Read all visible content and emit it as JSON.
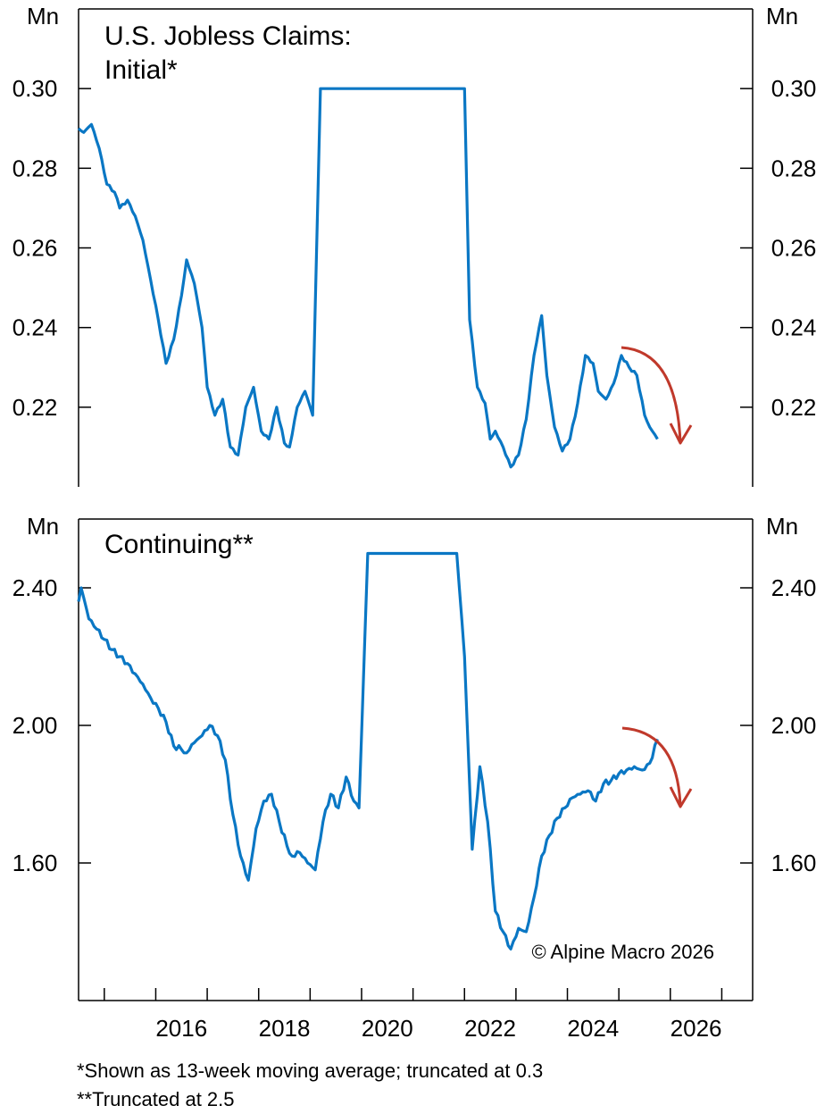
{
  "chart_data": [
    {
      "type": "line",
      "title": "U.S. Jobless Claims:",
      "subtitle": "Initial*",
      "unit_left": "Mn",
      "unit_right": "Mn",
      "y_ticks": [
        "0.30",
        "0.28",
        "0.26",
        "0.24",
        "0.22"
      ],
      "y_tick_values": [
        0.3,
        0.28,
        0.26,
        0.24,
        0.22
      ],
      "ylim": [
        0.2,
        0.32
      ],
      "xlim": [
        2014.5,
        2027.6
      ],
      "series_color": "#0a77c4",
      "arrow_color": "#c0392b",
      "series": [
        {
          "x": [
            2014.5,
            2014.6,
            2014.75,
            2014.9,
            2015.05,
            2015.2,
            2015.3,
            2015.45,
            2015.6,
            2015.75,
            2015.9,
            2016.05,
            2016.2,
            2016.35,
            2016.5,
            2016.6,
            2016.75,
            2016.9,
            2017.0,
            2017.15,
            2017.3,
            2017.45,
            2017.6,
            2017.75,
            2017.9,
            2018.05,
            2018.2,
            2018.35,
            2018.5,
            2018.6,
            2018.75,
            2018.9,
            2019.05,
            2019.2,
            2019.35,
            2019.5,
            2019.6,
            2019.75,
            2019.9,
            2020.0,
            2020.12,
            2020.18,
            2020.2,
            2020.3,
            2021.5,
            2021.55,
            2021.6,
            2021.7,
            2021.85,
            2022.0,
            2022.1,
            2022.25,
            2022.4,
            2022.5,
            2022.6,
            2022.75,
            2022.9,
            2023.05,
            2023.2,
            2023.35,
            2023.5,
            2023.6,
            2023.75,
            2023.9,
            2024.05,
            2024.2,
            2024.35,
            2024.5,
            2024.6,
            2024.75,
            2024.9,
            2025.05,
            2025.2,
            2025.35,
            2025.5,
            2025.6,
            2025.75
          ],
          "values": [
            0.29,
            0.289,
            0.291,
            0.285,
            0.276,
            0.274,
            0.27,
            0.272,
            0.268,
            0.262,
            0.252,
            0.242,
            0.231,
            0.237,
            0.248,
            0.257,
            0.251,
            0.24,
            0.225,
            0.218,
            0.222,
            0.21,
            0.208,
            0.22,
            0.225,
            0.214,
            0.212,
            0.22,
            0.211,
            0.21,
            0.22,
            0.224,
            0.218,
            0.3,
            0.3,
            0.3,
            0.3,
            0.3,
            0.3,
            0.3,
            0.3,
            0.3,
            0.3,
            0.3,
            0.3,
            0.3,
            0.3,
            0.3,
            0.3,
            0.3,
            0.242,
            0.225,
            0.221,
            0.212,
            0.214,
            0.21,
            0.205,
            0.208,
            0.217,
            0.233,
            0.243,
            0.228,
            0.215,
            0.209,
            0.212,
            0.221,
            0.233,
            0.231,
            0.224,
            0.222,
            0.226,
            0.233,
            0.23,
            0.228,
            0.218,
            0.215,
            0.212
          ]
        }
      ]
    },
    {
      "type": "line",
      "title": "Continuing**",
      "unit_left": "Mn",
      "unit_right": "Mn",
      "y_ticks": [
        "2.40",
        "2.00",
        "1.60"
      ],
      "y_tick_values": [
        2.4,
        2.0,
        1.6
      ],
      "ylim": [
        1.2,
        2.6
      ],
      "xlim": [
        2014.5,
        2027.6
      ],
      "x_ticks": [
        "2016",
        "2018",
        "2020",
        "2022",
        "2024",
        "2026"
      ],
      "x_tick_values": [
        2016,
        2018,
        2020,
        2022,
        2024,
        2026
      ],
      "series_color": "#0a77c4",
      "arrow_color": "#c0392b",
      "series": [
        {
          "x": [
            2014.5,
            2014.55,
            2014.7,
            2014.85,
            2015.0,
            2015.15,
            2015.3,
            2015.45,
            2015.6,
            2015.75,
            2015.9,
            2016.05,
            2016.2,
            2016.35,
            2016.5,
            2016.6,
            2016.75,
            2016.9,
            2017.05,
            2017.2,
            2017.35,
            2017.5,
            2017.65,
            2017.8,
            2017.95,
            2018.1,
            2018.25,
            2018.4,
            2018.55,
            2018.65,
            2018.8,
            2018.95,
            2019.1,
            2019.25,
            2019.4,
            2019.55,
            2019.7,
            2019.85,
            2019.95,
            2020.12,
            2020.18,
            2020.2,
            2021.65,
            2021.68,
            2021.75,
            2021.85,
            2022.0,
            2022.15,
            2022.3,
            2022.45,
            2022.6,
            2022.75,
            2022.9,
            2023.05,
            2023.2,
            2023.35,
            2023.5,
            2023.65,
            2023.8,
            2023.95,
            2024.1,
            2024.25,
            2024.4,
            2024.55,
            2024.7,
            2024.85,
            2025.0,
            2025.15,
            2025.3,
            2025.45,
            2025.6,
            2025.75
          ],
          "values": [
            2.36,
            2.4,
            2.31,
            2.28,
            2.25,
            2.22,
            2.2,
            2.18,
            2.15,
            2.12,
            2.08,
            2.05,
            2.01,
            1.94,
            1.93,
            1.92,
            1.95,
            1.97,
            2.0,
            1.97,
            1.9,
            1.74,
            1.62,
            1.55,
            1.7,
            1.78,
            1.8,
            1.72,
            1.65,
            1.62,
            1.63,
            1.6,
            1.58,
            1.72,
            1.8,
            1.76,
            1.85,
            1.78,
            1.76,
            2.5,
            2.5,
            2.5,
            2.5,
            2.5,
            2.5,
            2.5,
            2.2,
            1.64,
            1.88,
            1.72,
            1.46,
            1.4,
            1.35,
            1.41,
            1.4,
            1.5,
            1.62,
            1.68,
            1.73,
            1.76,
            1.79,
            1.8,
            1.81,
            1.78,
            1.83,
            1.84,
            1.86,
            1.87,
            1.88,
            1.87,
            1.89,
            1.96
          ]
        }
      ]
    }
  ],
  "copyright": "© Alpine Macro 2026",
  "footnotes": [
    "*Shown as 13-week moving average; truncated at 0.3",
    "**Truncated at 2.5"
  ]
}
